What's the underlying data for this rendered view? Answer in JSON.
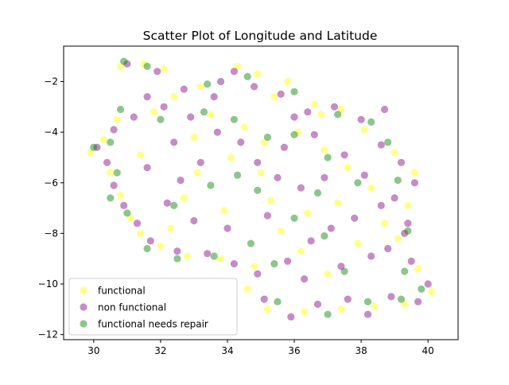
{
  "chart_data": {
    "type": "scatter",
    "title": "Scatter Plot of Longitude and Latitude",
    "xlabel": "",
    "ylabel": "",
    "xlim": [
      29.1,
      40.9
    ],
    "ylim": [
      -12.2,
      -0.6
    ],
    "x_ticks": [
      30,
      32,
      34,
      36,
      38,
      40
    ],
    "y_ticks": [
      -12,
      -10,
      -8,
      -6,
      -4,
      -2
    ],
    "x_tick_labels": [
      "30",
      "32",
      "34",
      "36",
      "38",
      "40"
    ],
    "y_tick_labels": [
      "−12",
      "−10",
      "−8",
      "−6",
      "−4",
      "−2"
    ],
    "grid": false,
    "legend_position": "lower-left",
    "marker_alpha": 0.45,
    "series": [
      {
        "name": "functional",
        "color": "#ffff00",
        "points": [
          [
            30.8,
            -1.4
          ],
          [
            31.5,
            -1.3
          ],
          [
            32.1,
            -1.5
          ],
          [
            33.2,
            -2.2
          ],
          [
            34.3,
            -1.4
          ],
          [
            34.9,
            -1.7
          ],
          [
            35.8,
            -2.0
          ],
          [
            36.6,
            -2.9
          ],
          [
            37.4,
            -3.1
          ],
          [
            38.1,
            -3.9
          ],
          [
            39.0,
            -4.8
          ],
          [
            39.6,
            -5.6
          ],
          [
            39.4,
            -6.9
          ],
          [
            39.1,
            -8.2
          ],
          [
            39.7,
            -9.4
          ],
          [
            40.1,
            -10.3
          ],
          [
            39.3,
            -10.8
          ],
          [
            38.4,
            -10.9
          ],
          [
            37.4,
            -11.0
          ],
          [
            36.3,
            -11.1
          ],
          [
            35.2,
            -11.0
          ],
          [
            34.6,
            -10.2
          ],
          [
            34.8,
            -9.3
          ],
          [
            33.8,
            -9.0
          ],
          [
            32.8,
            -8.9
          ],
          [
            32.0,
            -8.5
          ],
          [
            31.4,
            -8.0
          ],
          [
            31.1,
            -7.4
          ],
          [
            30.8,
            -6.5
          ],
          [
            30.5,
            -5.6
          ],
          [
            29.9,
            -4.8
          ],
          [
            30.3,
            -4.3
          ],
          [
            30.7,
            -3.5
          ],
          [
            31.8,
            -3.2
          ],
          [
            32.4,
            -2.6
          ],
          [
            33.5,
            -3.3
          ],
          [
            34.5,
            -3.8
          ],
          [
            35.1,
            -4.4
          ],
          [
            36.1,
            -4.0
          ],
          [
            36.9,
            -4.7
          ],
          [
            37.6,
            -5.4
          ],
          [
            38.3,
            -6.2
          ],
          [
            37.3,
            -6.8
          ],
          [
            36.4,
            -7.2
          ],
          [
            35.6,
            -7.9
          ],
          [
            36.2,
            -8.7
          ],
          [
            37.0,
            -9.6
          ],
          [
            37.9,
            -8.4
          ],
          [
            35.0,
            -5.6
          ],
          [
            34.1,
            -5.0
          ],
          [
            33.1,
            -5.6
          ],
          [
            32.7,
            -6.6
          ],
          [
            33.9,
            -7.1
          ],
          [
            35.3,
            -6.7
          ],
          [
            36.8,
            -3.3
          ],
          [
            35.4,
            -2.6
          ],
          [
            33.0,
            -4.2
          ],
          [
            31.4,
            -4.9
          ],
          [
            32.3,
            -7.8
          ],
          [
            38.7,
            -7.6
          ]
        ]
      },
      {
        "name": "non functional",
        "color": "#800080",
        "points": [
          [
            31.0,
            -1.3
          ],
          [
            31.9,
            -1.6
          ],
          [
            32.7,
            -2.3
          ],
          [
            33.6,
            -2.6
          ],
          [
            34.2,
            -1.6
          ],
          [
            34.8,
            -2.2
          ],
          [
            35.6,
            -2.5
          ],
          [
            36.4,
            -3.2
          ],
          [
            37.2,
            -3.0
          ],
          [
            38.0,
            -3.5
          ],
          [
            38.6,
            -4.5
          ],
          [
            39.2,
            -5.2
          ],
          [
            39.6,
            -6.0
          ],
          [
            39.0,
            -6.6
          ],
          [
            39.4,
            -7.6
          ],
          [
            38.8,
            -8.6
          ],
          [
            39.5,
            -9.1
          ],
          [
            40.0,
            -10.0
          ],
          [
            39.7,
            -10.7
          ],
          [
            38.9,
            -10.5
          ],
          [
            38.2,
            -11.2
          ],
          [
            37.6,
            -10.6
          ],
          [
            36.7,
            -10.8
          ],
          [
            35.9,
            -11.3
          ],
          [
            35.1,
            -10.6
          ],
          [
            34.9,
            -9.6
          ],
          [
            34.2,
            -9.2
          ],
          [
            33.4,
            -8.8
          ],
          [
            32.5,
            -8.7
          ],
          [
            31.7,
            -8.3
          ],
          [
            31.3,
            -7.6
          ],
          [
            30.9,
            -6.9
          ],
          [
            30.6,
            -6.1
          ],
          [
            30.4,
            -5.2
          ],
          [
            30.1,
            -4.6
          ],
          [
            30.6,
            -3.9
          ],
          [
            31.2,
            -3.4
          ],
          [
            32.1,
            -3.0
          ],
          [
            32.9,
            -3.4
          ],
          [
            33.7,
            -4.0
          ],
          [
            34.4,
            -4.4
          ],
          [
            34.9,
            -5.2
          ],
          [
            35.5,
            -5.8
          ],
          [
            36.2,
            -6.2
          ],
          [
            36.9,
            -5.8
          ],
          [
            37.5,
            -4.9
          ],
          [
            38.1,
            -5.7
          ],
          [
            38.6,
            -6.9
          ],
          [
            37.8,
            -7.4
          ],
          [
            37.1,
            -7.8
          ],
          [
            36.5,
            -8.3
          ],
          [
            35.8,
            -9.1
          ],
          [
            36.3,
            -9.8
          ],
          [
            37.4,
            -9.3
          ],
          [
            38.3,
            -8.9
          ],
          [
            33.2,
            -5.2
          ],
          [
            32.6,
            -5.9
          ],
          [
            32.2,
            -6.8
          ],
          [
            33.0,
            -7.5
          ],
          [
            34.0,
            -7.8
          ],
          [
            35.2,
            -7.3
          ],
          [
            35.7,
            -4.6
          ],
          [
            36.6,
            -4.1
          ],
          [
            33.8,
            -2.0
          ],
          [
            31.6,
            -2.6
          ],
          [
            32.4,
            -4.4
          ],
          [
            31.6,
            -5.4
          ],
          [
            38.7,
            -3.1
          ],
          [
            39.3,
            -8.0
          ],
          [
            36.0,
            -3.4
          ]
        ]
      },
      {
        "name": "functional needs repair",
        "color": "#008000",
        "points": [
          [
            30.9,
            -1.2
          ],
          [
            31.6,
            -1.4
          ],
          [
            33.4,
            -2.1
          ],
          [
            34.6,
            -1.8
          ],
          [
            36.0,
            -2.4
          ],
          [
            37.3,
            -3.3
          ],
          [
            38.3,
            -3.6
          ],
          [
            39.1,
            -5.9
          ],
          [
            39.4,
            -7.9
          ],
          [
            39.8,
            -10.2
          ],
          [
            39.2,
            -10.6
          ],
          [
            38.2,
            -10.7
          ],
          [
            37.0,
            -11.2
          ],
          [
            35.5,
            -10.7
          ],
          [
            34.7,
            -8.4
          ],
          [
            33.6,
            -8.9
          ],
          [
            32.5,
            -9.0
          ],
          [
            31.6,
            -8.6
          ],
          [
            31.0,
            -7.2
          ],
          [
            30.5,
            -6.6
          ],
          [
            30.0,
            -4.6
          ],
          [
            30.5,
            -4.4
          ],
          [
            30.8,
            -3.1
          ],
          [
            32.0,
            -3.5
          ],
          [
            33.3,
            -3.2
          ],
          [
            34.2,
            -3.5
          ],
          [
            35.2,
            -4.2
          ],
          [
            36.0,
            -4.1
          ],
          [
            37.0,
            -5.0
          ],
          [
            37.9,
            -6.0
          ],
          [
            36.7,
            -6.4
          ],
          [
            36.0,
            -7.4
          ],
          [
            36.9,
            -8.1
          ],
          [
            37.5,
            -9.5
          ],
          [
            35.4,
            -9.2
          ],
          [
            34.3,
            -5.7
          ],
          [
            33.5,
            -6.1
          ],
          [
            32.4,
            -6.9
          ],
          [
            34.9,
            -6.3
          ],
          [
            38.8,
            -4.4
          ],
          [
            39.3,
            -9.5
          ],
          [
            30.7,
            -5.6
          ]
        ]
      }
    ]
  }
}
